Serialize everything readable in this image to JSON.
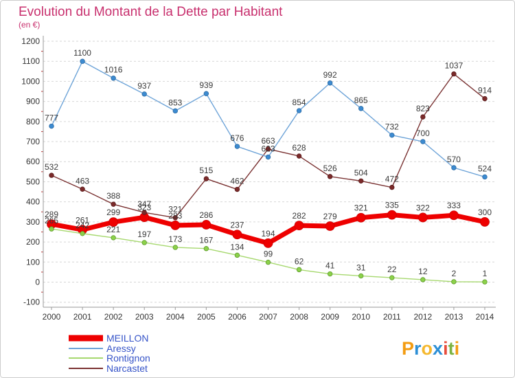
{
  "chart_data": {
    "type": "line",
    "title": "Evolution du Montant de la Dette par Habitant",
    "subtitle": "(en €)",
    "xlabel": "",
    "ylabel": "",
    "x": [
      2000,
      2001,
      2002,
      2003,
      2004,
      2005,
      2006,
      2007,
      2008,
      2009,
      2010,
      2011,
      2012,
      2013,
      2014
    ],
    "ylim": [
      -100,
      1200
    ],
    "yticks": [
      -100,
      0,
      100,
      200,
      300,
      400,
      500,
      600,
      700,
      800,
      900,
      1000,
      1100,
      1200
    ],
    "grid": true,
    "legend": "bottom-left",
    "series": [
      {
        "name": "MEILLON",
        "color": "#ee0000",
        "values": [
          289,
          261,
          299,
          323,
          283,
          286,
          237,
          194,
          282,
          279,
          321,
          335,
          322,
          333,
          300
        ]
      },
      {
        "name": "Aressy",
        "color": "#6ea4d8",
        "values": [
          777,
          1100,
          1016,
          937,
          853,
          939,
          676,
          623,
          854,
          992,
          865,
          732,
          700,
          570,
          524
        ]
      },
      {
        "name": "Rontignon",
        "color": "#a6d86e",
        "values": [
          265,
          242,
          221,
          197,
          173,
          167,
          134,
          99,
          62,
          41,
          31,
          22,
          12,
          2,
          1
        ]
      },
      {
        "name": "Narcastet",
        "color": "#7a3232",
        "values": [
          532,
          463,
          388,
          347,
          321,
          515,
          462,
          663,
          628,
          526,
          504,
          472,
          823,
          1037,
          914
        ]
      }
    ]
  },
  "logo": {
    "text": "Proxiti",
    "colors": [
      "#f39c12",
      "#2d8fd5",
      "#f5b82e",
      "#2d8fd5",
      "#e74c3c",
      "#7cb342",
      "#f39c12"
    ]
  }
}
